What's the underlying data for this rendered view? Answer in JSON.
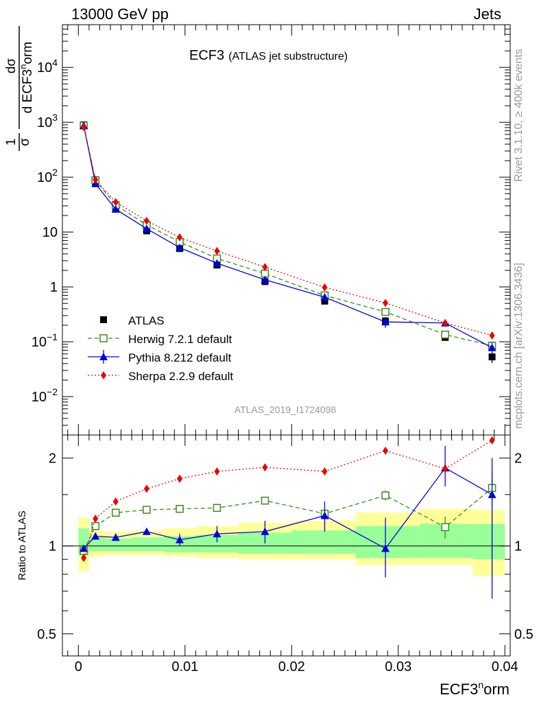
{
  "header": {
    "left": "13000 GeV pp",
    "right": "Jets"
  },
  "side_labels": {
    "rivet": "Rivet 3.1.10, ≥ 400k events",
    "mcplots": "mcplots.cern.ch [arXiv:1306.3436]"
  },
  "colors": {
    "atlas": "#000000",
    "herwig": "#3a8a1a",
    "pythia": "#0000dd",
    "sherpa": "#ee0000",
    "band_green": "#99ff99",
    "band_yellow": "#ffff99",
    "analysis_label": "#999999"
  },
  "chart_data": [
    {
      "type": "line",
      "title": "ECF3",
      "subtitle": "(ATLAS jet substructure)",
      "ylabel_fraction": {
        "num": "1",
        "den": "σ"
      },
      "ylabel_derivative": {
        "num": "dσ",
        "den_main": "d ECF3",
        "den_sup": "n",
        "den_tail": "orm"
      },
      "yscale": "log",
      "ylim": [
        0.002,
        60000
      ],
      "xlim": [
        -0.0015,
        0.0405
      ],
      "analysis_label": "ATLAS_2019_I1724098",
      "y_ticks": [
        {
          "value": 0.01,
          "base": "10",
          "exp": "−2"
        },
        {
          "value": 0.1,
          "base": "10",
          "exp": "−1"
        },
        {
          "value": 1,
          "base": "1",
          "exp": ""
        },
        {
          "value": 10,
          "base": "10",
          "exp": ""
        },
        {
          "value": 100,
          "base": "10",
          "exp": "2"
        },
        {
          "value": 1000,
          "base": "10",
          "exp": "3"
        },
        {
          "value": 10000,
          "base": "10",
          "exp": "4"
        }
      ],
      "legend": [
        {
          "key": "atlas",
          "label": "ATLAS"
        },
        {
          "key": "herwig",
          "label": "Herwig 7.2.1 default"
        },
        {
          "key": "pythia",
          "label": "Pythia 8.212 default"
        },
        {
          "key": "sherpa",
          "label": "Sherpa 2.2.9 default"
        }
      ],
      "x": [
        0.0005,
        0.0016,
        0.0035,
        0.0064,
        0.0095,
        0.013,
        0.0175,
        0.0231,
        0.0288,
        0.0344,
        0.0388
      ],
      "series": [
        {
          "key": "atlas",
          "name": "ATLAS",
          "values": [
            900,
            82,
            26,
            10.5,
            5.0,
            2.5,
            1.25,
            0.55,
            0.24,
            0.12,
            0.053
          ],
          "err_low": [
            0,
            0,
            0,
            0,
            0,
            0,
            0,
            0,
            0.03,
            0.01,
            0.012
          ],
          "err_high": [
            0,
            0,
            0,
            0,
            0,
            0,
            0,
            0,
            0.03,
            0.01,
            0.012
          ]
        },
        {
          "key": "herwig",
          "name": "Herwig 7.2.1 default",
          "values": [
            870,
            88,
            31,
            13.5,
            6.6,
            3.3,
            1.75,
            0.7,
            0.35,
            0.135,
            0.085
          ],
          "err_low": [
            0,
            0,
            0,
            0,
            0,
            0,
            0,
            0,
            0,
            0,
            0
          ],
          "err_high": [
            0,
            0,
            0,
            0,
            0,
            0,
            0,
            0,
            0,
            0,
            0
          ]
        },
        {
          "key": "pythia",
          "name": "Pythia 8.212 default",
          "values": [
            870,
            76,
            26,
            11.5,
            5.2,
            2.7,
            1.35,
            0.65,
            0.23,
            0.22,
            0.078
          ],
          "err_low": [
            0,
            0,
            0,
            0,
            0,
            0,
            0,
            0,
            0.05,
            0.03,
            0.02
          ],
          "err_high": [
            0,
            0,
            0,
            0,
            0,
            0,
            0,
            0,
            0.05,
            0.03,
            0.02
          ]
        },
        {
          "key": "sherpa",
          "name": "Sherpa 2.2.9 default",
          "values": [
            820,
            90,
            35,
            16,
            8.0,
            4.5,
            2.3,
            0.98,
            0.51,
            0.22,
            0.13
          ],
          "err_low": [
            0,
            0,
            0,
            0,
            0,
            0,
            0,
            0,
            0,
            0,
            0
          ],
          "err_high": [
            0,
            0,
            0,
            0,
            0,
            0,
            0,
            0,
            0,
            0,
            0
          ]
        }
      ]
    },
    {
      "type": "line",
      "ylabel": "Ratio to ATLAS",
      "xlabel_main": "ECF3",
      "xlabel_sup": "n",
      "xlabel_tail": "orm",
      "yscale": "log",
      "ylim": [
        0.42,
        2.4
      ],
      "xlim": [
        -0.0015,
        0.0405
      ],
      "x_ticks": [
        {
          "value": 0,
          "label": "0"
        },
        {
          "value": 0.01,
          "label": "0.01"
        },
        {
          "value": 0.02,
          "label": "0.02"
        },
        {
          "value": 0.03,
          "label": "0.03"
        },
        {
          "value": 0.04,
          "label": "0.04"
        }
      ],
      "y_ticks": [
        {
          "value": 0.5,
          "label": "0.5"
        },
        {
          "value": 1,
          "label": "1"
        },
        {
          "value": 2,
          "label": "2"
        }
      ],
      "bands": {
        "edges": [
          0,
          0.001,
          0.0025,
          0.005,
          0.008,
          0.011,
          0.015,
          0.02,
          0.026,
          0.032,
          0.037,
          0.04
        ],
        "yellow": [
          [
            0.82,
            1.25
          ],
          [
            0.92,
            1.13
          ],
          [
            0.93,
            1.12
          ],
          [
            0.93,
            1.13
          ],
          [
            0.92,
            1.15
          ],
          [
            0.91,
            1.17
          ],
          [
            0.9,
            1.2
          ],
          [
            0.9,
            1.22
          ],
          [
            0.86,
            1.3
          ],
          [
            0.86,
            1.34
          ],
          [
            0.79,
            1.33
          ]
        ],
        "green": [
          [
            0.93,
            1.15
          ],
          [
            0.96,
            1.07
          ],
          [
            0.96,
            1.06
          ],
          [
            0.96,
            1.07
          ],
          [
            0.95,
            1.08
          ],
          [
            0.95,
            1.09
          ],
          [
            0.94,
            1.11
          ],
          [
            0.94,
            1.13
          ],
          [
            0.91,
            1.17
          ],
          [
            0.91,
            1.19
          ],
          [
            0.9,
            1.19
          ]
        ]
      },
      "x": [
        0.0005,
        0.0016,
        0.0035,
        0.0064,
        0.0095,
        0.013,
        0.0175,
        0.0231,
        0.0288,
        0.0344,
        0.0388
      ],
      "series": [
        {
          "key": "herwig",
          "name": "Herwig 7.2.1 default",
          "values": [
            0.96,
            1.17,
            1.3,
            1.33,
            1.34,
            1.35,
            1.43,
            1.29,
            1.49,
            1.16,
            1.58
          ],
          "err_low": [
            0,
            0.02,
            0.03,
            0.03,
            0,
            0,
            0.03,
            0,
            0.06,
            0.1,
            0.2
          ],
          "err_high": [
            0,
            0.02,
            0.03,
            0.03,
            0,
            0,
            0.03,
            0,
            0.06,
            0.1,
            0.2
          ]
        },
        {
          "key": "pythia",
          "name": "Pythia 8.212 default",
          "values": [
            0.98,
            1.08,
            1.07,
            1.12,
            1.05,
            1.1,
            1.12,
            1.27,
            0.98,
            1.85,
            1.5
          ],
          "err_low": [
            0,
            0.03,
            0.03,
            0.03,
            0.05,
            0.07,
            0.1,
            0.15,
            0.2,
            0.25,
            0.84
          ],
          "err_high": [
            0,
            0.03,
            0.03,
            0.03,
            0.05,
            0.07,
            0.1,
            0.15,
            0.27,
            0.35,
            0.5
          ]
        },
        {
          "key": "sherpa",
          "name": "Sherpa 2.2.9 default",
          "values": [
            0.91,
            1.24,
            1.42,
            1.57,
            1.7,
            1.8,
            1.86,
            1.8,
            2.12,
            1.84,
            2.3
          ],
          "err_low": [
            0,
            0,
            0,
            0,
            0,
            0,
            0,
            0.05,
            0.06,
            0,
            0.06
          ],
          "err_high": [
            0,
            0,
            0,
            0,
            0,
            0,
            0,
            0.05,
            0.06,
            0,
            0.06
          ]
        }
      ]
    }
  ]
}
